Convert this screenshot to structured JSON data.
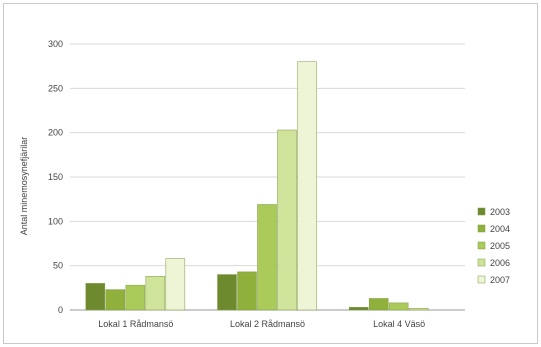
{
  "chart_data": {
    "type": "bar",
    "title": "",
    "xlabel": "",
    "ylabel": "Antal minemosynefjärilar",
    "ylim": [
      0,
      300
    ],
    "yticks": [
      0,
      50,
      100,
      150,
      200,
      250,
      300
    ],
    "grid": true,
    "legend_position": "right",
    "categories": [
      "Lokal 1 Rådmansö",
      "Lokal 2 Rådmansö",
      "Lokal 4 Väsö"
    ],
    "series": [
      {
        "name": "2003",
        "color": "#6e8a2e",
        "values": [
          30,
          40,
          3
        ]
      },
      {
        "name": "2004",
        "color": "#8fb03a",
        "values": [
          23,
          43,
          13
        ]
      },
      {
        "name": "2005",
        "color": "#aacb5a",
        "values": [
          28,
          119,
          8
        ]
      },
      {
        "name": "2006",
        "color": "#cfe39a",
        "values": [
          38,
          203,
          2
        ]
      },
      {
        "name": "2007",
        "color": "#eef5d6",
        "values": [
          58,
          280,
          0
        ]
      }
    ]
  }
}
